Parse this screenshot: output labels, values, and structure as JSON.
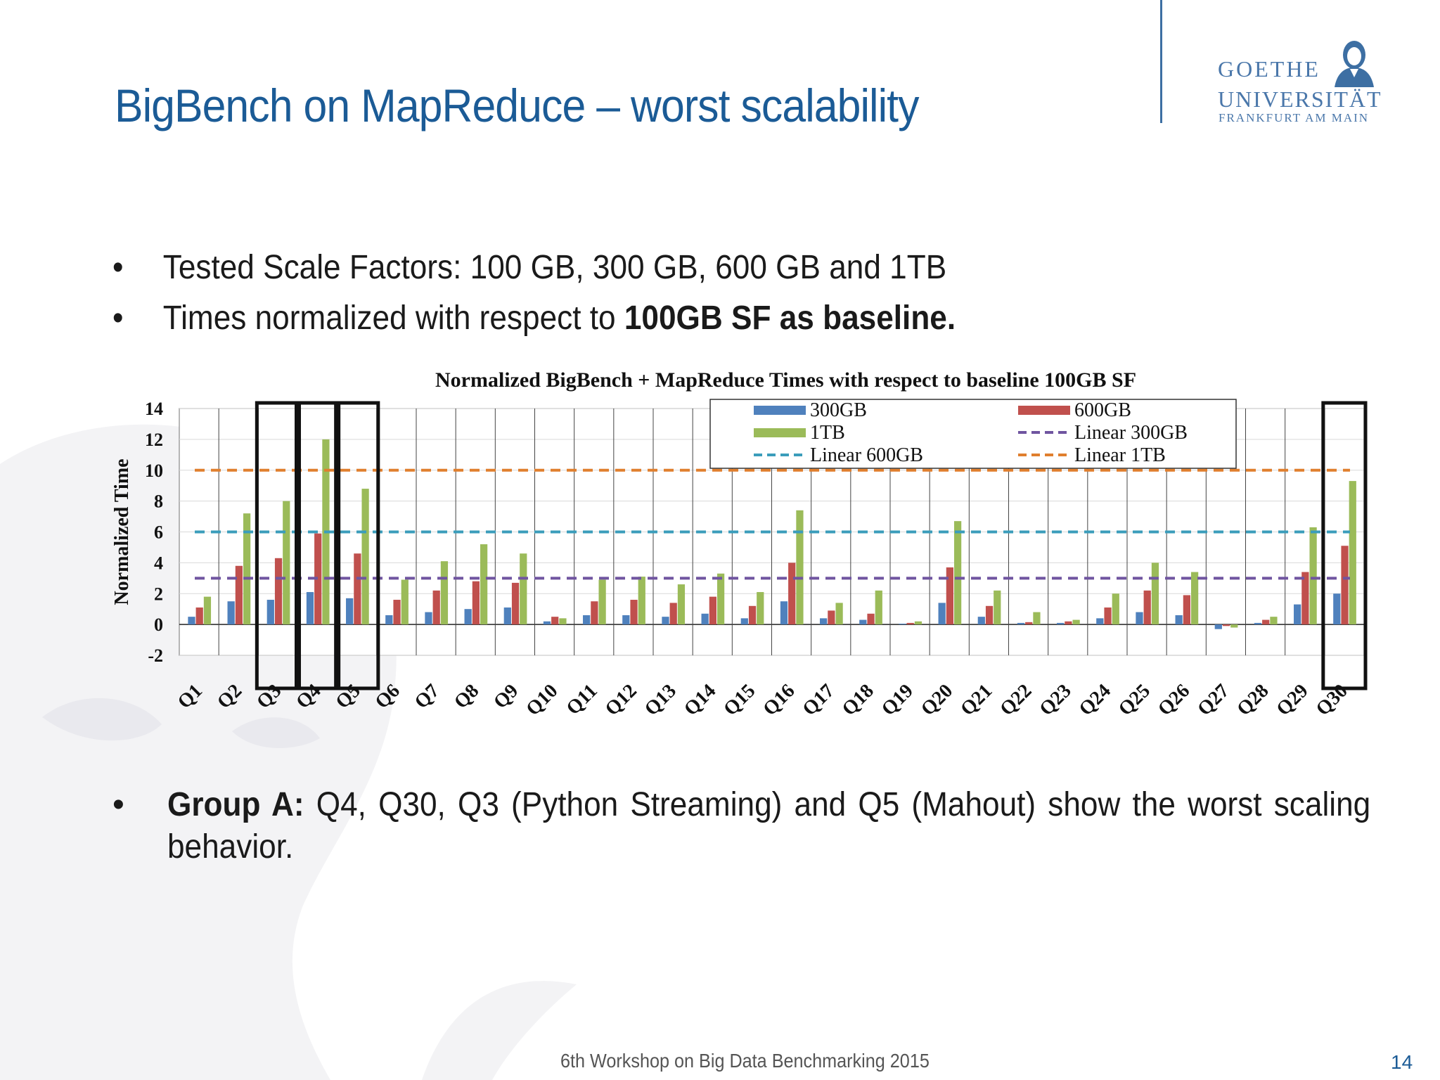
{
  "slide": {
    "title": "BigBench on MapReduce – worst scalability",
    "logo": {
      "line1": "GOETHE",
      "line2": "UNIVERSITÄT",
      "line3": "FRANKFURT AM MAIN"
    },
    "bullets": [
      {
        "marker": "•",
        "text": "Tested Scale Factors: 100 GB, 300 GB, 600 GB and 1TB"
      },
      {
        "marker": "•",
        "text_plain": "Times normalized with respect to ",
        "text_bold": "100GB SF as baseline."
      }
    ],
    "group_bullet": {
      "marker": "•",
      "bold": "Group A:",
      "text": " Q4, Q30, Q3 (Python Streaming) and Q5 (Mahout) show the worst scaling behavior."
    },
    "footer": "6th Workshop on Big Data Benchmarking 2015",
    "page_number": "14"
  },
  "chart_data": {
    "type": "bar",
    "title": "Normalized BigBench + MapReduce Times with respect to baseline 100GB SF",
    "ylabel": "Normalized Time",
    "xlabel": "",
    "ylim": [
      -2,
      14
    ],
    "yticks": [
      "14",
      "12",
      "10",
      "8",
      "6",
      "4",
      "2",
      "0",
      "-2"
    ],
    "categories": [
      "Q1",
      "Q2",
      "Q3",
      "Q4",
      "Q5",
      "Q6",
      "Q7",
      "Q8",
      "Q9",
      "Q10",
      "Q11",
      "Q12",
      "Q13",
      "Q14",
      "Q15",
      "Q16",
      "Q17",
      "Q18",
      "Q19",
      "Q20",
      "Q21",
      "Q22",
      "Q23",
      "Q24",
      "Q25",
      "Q26",
      "Q27",
      "Q28",
      "Q29",
      "Q30"
    ],
    "series": [
      {
        "name": "300GB",
        "color": "#4f81bd",
        "values": [
          0.5,
          1.5,
          1.6,
          2.1,
          1.7,
          0.6,
          0.8,
          1.0,
          1.1,
          0.2,
          0.6,
          0.6,
          0.5,
          0.7,
          0.4,
          1.5,
          0.4,
          0.3,
          0.05,
          1.4,
          0.5,
          0.1,
          0.1,
          0.4,
          0.8,
          0.6,
          -0.3,
          0.1,
          1.3,
          2.0
        ]
      },
      {
        "name": "600GB",
        "color": "#c0504d",
        "values": [
          1.1,
          3.8,
          4.3,
          5.9,
          4.6,
          1.6,
          2.2,
          2.8,
          2.7,
          0.5,
          1.5,
          1.6,
          1.4,
          1.8,
          1.2,
          4.0,
          0.9,
          0.7,
          0.1,
          3.7,
          1.2,
          0.15,
          0.2,
          1.1,
          2.2,
          1.9,
          -0.1,
          0.3,
          3.4,
          5.1
        ]
      },
      {
        "name": "1TB",
        "color": "#9bbb59",
        "values": [
          1.8,
          7.2,
          8.0,
          12.0,
          8.8,
          2.9,
          4.1,
          5.2,
          4.6,
          0.4,
          2.9,
          3.1,
          2.6,
          3.3,
          2.1,
          7.4,
          1.4,
          2.2,
          0.2,
          6.7,
          2.2,
          0.8,
          0.3,
          2.0,
          4.0,
          3.4,
          -0.2,
          0.5,
          6.3,
          9.3
        ]
      }
    ],
    "reference_lines": [
      {
        "name": "Linear 300GB",
        "value": 3,
        "color": "#7055a0"
      },
      {
        "name": "Linear 600GB",
        "value": 6,
        "color": "#3b9dbb"
      },
      {
        "name": "Linear 1TB",
        "value": 10,
        "color": "#e07f2e"
      }
    ],
    "legend": {
      "placement": "top-right",
      "entries": [
        "300GB",
        "600GB",
        "1TB",
        "Linear 300GB",
        "Linear 600GB",
        "Linear 1TB"
      ]
    },
    "highlighted_categories": [
      "Q3",
      "Q4",
      "Q5",
      "Q30"
    ],
    "grid": true
  }
}
